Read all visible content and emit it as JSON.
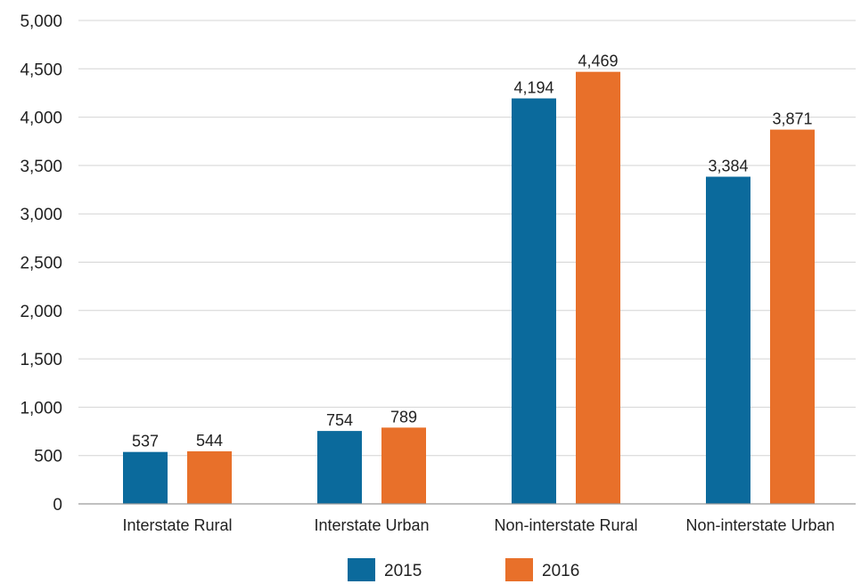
{
  "chart_data": {
    "type": "bar",
    "categories": [
      "Interstate Rural",
      "Interstate Urban",
      "Non-interstate Rural",
      "Non-interstate Urban"
    ],
    "series": [
      {
        "name": "2015",
        "values": [
          537,
          754,
          4194,
          3384
        ],
        "color": "#0B6A9C"
      },
      {
        "name": "2016",
        "values": [
          544,
          789,
          4469,
          3871
        ],
        "color": "#E8702A"
      }
    ],
    "data_labels": [
      [
        "537",
        "754",
        "4,194",
        "3,384"
      ],
      [
        "544",
        "789",
        "4,469",
        "3,871"
      ]
    ],
    "ylim": [
      0,
      5000
    ],
    "yticks": [
      0,
      500,
      1000,
      1500,
      2000,
      2500,
      3000,
      3500,
      4000,
      4500,
      5000
    ],
    "ytick_labels": [
      "0",
      "500",
      "1,000",
      "1,500",
      "2,000",
      "2,500",
      "3,000",
      "3,500",
      "4,000",
      "4,500",
      "5,000"
    ],
    "grid": true,
    "legend": "bottom-center",
    "title": "",
    "xlabel": "",
    "ylabel": ""
  }
}
